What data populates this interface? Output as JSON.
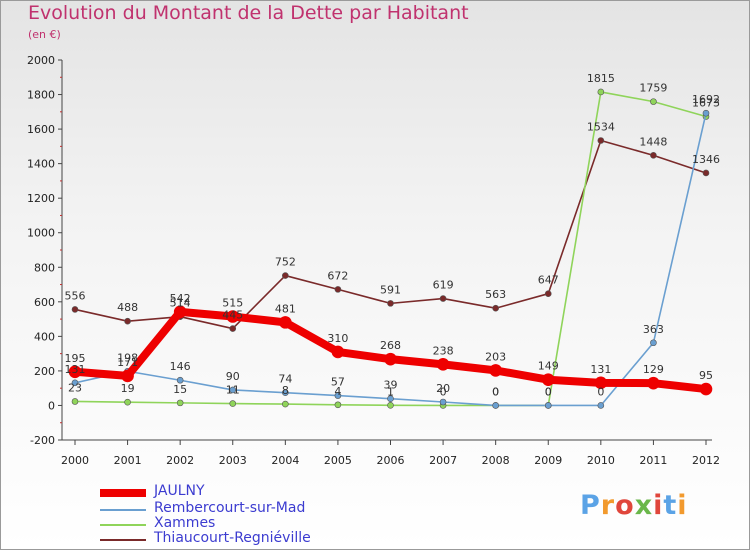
{
  "title": "Evolution du Montant de la Dette par Habitant",
  "subtitle": "(en €)",
  "logo": {
    "text": "Proxiti",
    "letter_colors": [
      "#5ba3e6",
      "#f29a2e",
      "#e0463c",
      "#6ab74a",
      "#e0463c",
      "#5ba3e6",
      "#f29a2e"
    ]
  },
  "chart_data": {
    "type": "line",
    "title": "Evolution du Montant de la Dette par Habitant",
    "ylabel": "(en €)",
    "xlabel": "",
    "x": [
      "2000",
      "2001",
      "2002",
      "2003",
      "2004",
      "2005",
      "2006",
      "2007",
      "2008",
      "2009",
      "2010",
      "2011",
      "2012"
    ],
    "ylim": [
      -200,
      2000
    ],
    "yticks": [
      "-200",
      "0",
      "200",
      "400",
      "600",
      "800",
      "1000",
      "1200",
      "1400",
      "1600",
      "1800",
      "2000"
    ],
    "grid": false,
    "legend_position": "bottom-left",
    "series": [
      {
        "name": "JAULNY",
        "color": "#ee0000",
        "values": [
          195,
          171,
          542,
          515,
          481,
          310,
          268,
          238,
          203,
          149,
          131,
          129,
          95
        ],
        "labels": [
          "195",
          "171",
          "542",
          "515",
          "481",
          "310",
          "268",
          "238",
          "203",
          "149",
          "131",
          "129",
          "95"
        ]
      },
      {
        "name": "Rembercourt-sur-Mad",
        "color": "#6a9fd0",
        "values": [
          131,
          198,
          146,
          90,
          74,
          57,
          39,
          20,
          0,
          0,
          0,
          363,
          1692
        ],
        "labels": [
          "131",
          "198",
          "146",
          "90",
          "74",
          "57",
          "39",
          "20",
          "0",
          "0",
          "0",
          "363",
          "1692"
        ]
      },
      {
        "name": "Xammes",
        "color": "#8fd45a",
        "values": [
          23,
          19,
          15,
          11,
          8,
          4,
          1,
          0,
          0,
          0,
          1815,
          1759,
          1673
        ],
        "labels": [
          "23",
          "19",
          "15",
          "11",
          "8",
          "4",
          "1",
          "0",
          "0",
          "0",
          "1815",
          "1759",
          "1673"
        ]
      },
      {
        "name": "Thiaucourt-Regniéville",
        "color": "#7a2a2a",
        "values": [
          556,
          488,
          514,
          445,
          752,
          672,
          591,
          619,
          563,
          647,
          1534,
          1448,
          1346
        ],
        "labels": [
          "556",
          "488",
          "514",
          "445",
          "752",
          "672",
          "591",
          "619",
          "563",
          "647",
          "1534",
          "1448",
          "1346"
        ]
      }
    ]
  }
}
